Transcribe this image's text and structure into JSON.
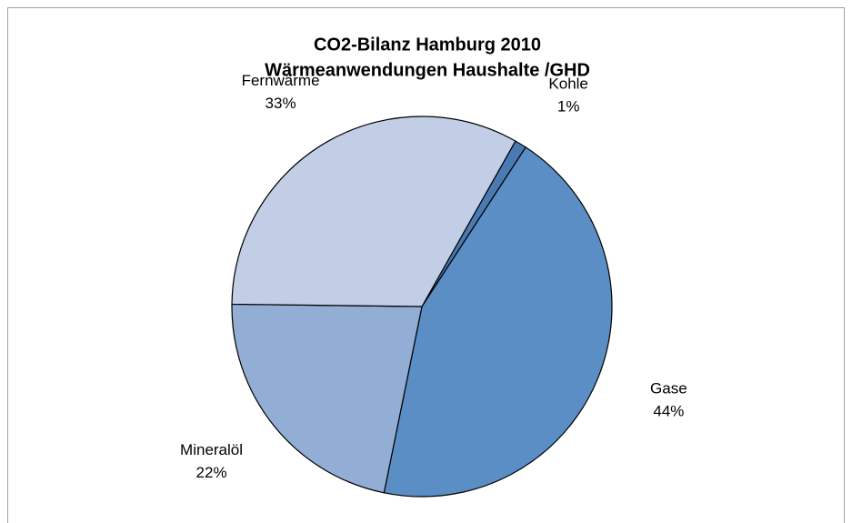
{
  "chart_data": {
    "type": "pie",
    "title": [
      "CO2-Bilanz Hamburg 2010",
      "Wärmeanwendungen Haushalte /GHD"
    ],
    "categories": [
      "Kohle",
      "Gase",
      "Mineralöl",
      "Fernwärme"
    ],
    "values": [
      1,
      44,
      22,
      33
    ],
    "value_labels": [
      "1%",
      "44%",
      "22%",
      "33%"
    ],
    "colors": [
      "#4a7ab4",
      "#5b8ec4",
      "#92aed5",
      "#c2cee5"
    ],
    "start_angle": 29.5
  }
}
